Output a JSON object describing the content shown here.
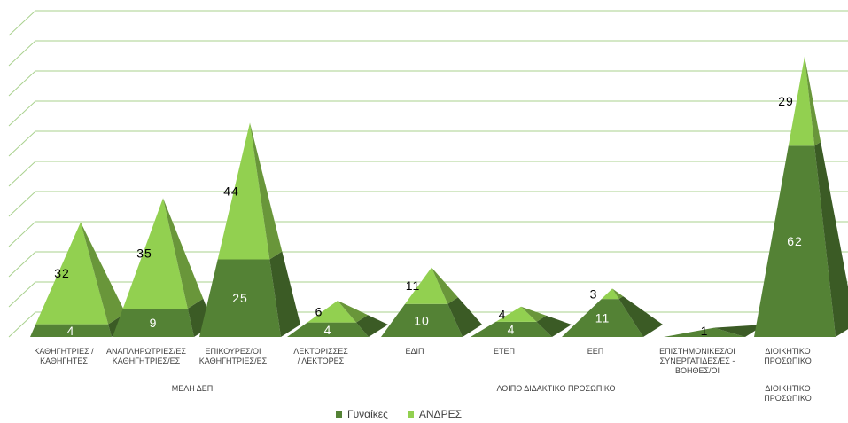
{
  "chart_data": {
    "type": "bar",
    "style": "3d-pyramid-stacked",
    "categories": [
      {
        "lines": [
          "ΚΑΘΗΓΗΤΡΙΕΣ /",
          "ΚΑΘΗΓΗΤΕΣ"
        ]
      },
      {
        "lines": [
          "ΑΝΑΠΛΗΡΩΤΡΙΕΣ/ΕΣ",
          "ΚΑΘΗΓΗΤΡΙΕΣ/ΕΣ"
        ]
      },
      {
        "lines": [
          "ΕΠΙΚΟΥΡΕΣ/ΟΙ",
          "ΚΑΘΗΓΗΤΡΙΕΣ/ΕΣ"
        ]
      },
      {
        "lines": [
          "ΛΕΚΤΟΡΙΣΣΕΣ",
          "/ ΛΕΚΤΟΡΕΣ"
        ]
      },
      {
        "lines": [
          "ΕΔΙΠ"
        ]
      },
      {
        "lines": [
          "ΕΤΕΠ"
        ]
      },
      {
        "lines": [
          "ΕΕΠ"
        ]
      },
      {
        "lines": [
          "ΕΠΙΣΤΗΜΟΝΙΚΕΣ/ΟΙ",
          "ΣΥΝΕΡΓΑΤΙΔΕΣ/ΕΣ -",
          "ΒΟΗΘΕΣ/ΟΙ"
        ]
      },
      {
        "lines": [
          "ΔΙΟΙΚΗΤΙΚΟ",
          "ΠΡΟΣΩΠΙΚΟ"
        ]
      }
    ],
    "groups": [
      {
        "lines": [
          "ΜΕΛΗ ΔΕΠ"
        ],
        "from": 0,
        "to": 3
      },
      {
        "lines": [
          "ΛΟΙΠΟ ΔΙΔΑΚΤΙΚΟ ΠΡΟΣΩΠΙΚΟ"
        ],
        "from": 4,
        "to": 7
      },
      {
        "lines": [
          "ΔΙΟΙΚΗΤΙΚΟ",
          "ΠΡΟΣΩΠΙΚΟ"
        ],
        "from": 8,
        "to": 8
      }
    ],
    "series": [
      {
        "name": "Γυναίκες",
        "color": "#548235",
        "values": [
          4,
          9,
          25,
          4,
          10,
          4,
          11,
          1,
          62
        ]
      },
      {
        "name": "ΑΝΔΡΕΣ",
        "color": "#92d050",
        "values": [
          32,
          35,
          44,
          6,
          11,
          4,
          3,
          0,
          29
        ]
      }
    ],
    "ylim": [
      0,
      100
    ],
    "grid": true,
    "legend": "bottom"
  }
}
